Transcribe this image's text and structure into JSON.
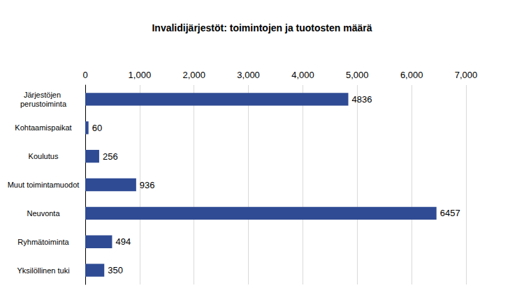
{
  "chart_data": {
    "type": "bar",
    "title": "Invalidijärjestöt: toimintojen ja tuotosten määrä",
    "categories": [
      "Järjestöjen perustoiminta",
      "Kohtaamispaikat",
      "Koulutus",
      "Muut toimintamuodot",
      "Neuvonta",
      "Ryhmätoiminta",
      "Yksilöllinen tuki"
    ],
    "values": [
      4836,
      60,
      256,
      936,
      6457,
      494,
      350
    ],
    "color": "#2f4b94",
    "orientation": "horizontal",
    "xlim": [
      0,
      7000
    ],
    "xticks": [
      0,
      1000,
      2000,
      3000,
      4000,
      5000,
      6000,
      7000
    ],
    "grid": true,
    "data_labels": true
  }
}
